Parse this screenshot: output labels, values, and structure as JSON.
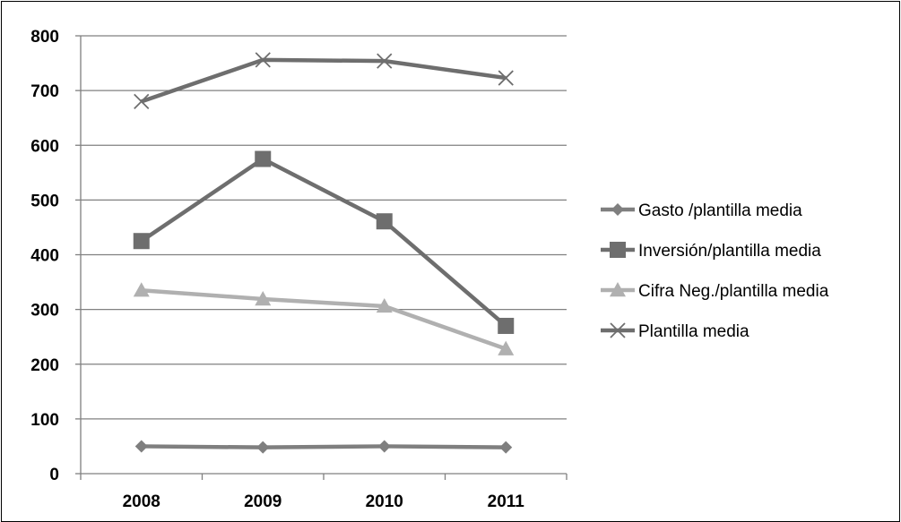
{
  "chart_data": {
    "type": "line",
    "categories": [
      "2008",
      "2009",
      "2010",
      "2011"
    ],
    "ylim": [
      0,
      800
    ],
    "yticks": [
      0,
      100,
      200,
      300,
      400,
      500,
      600,
      700,
      800
    ],
    "grid": true,
    "legend_position": "right",
    "series": [
      {
        "name": "Gasto /plantilla media",
        "values": [
          50,
          48,
          50,
          48
        ],
        "color": "#7f7f7f",
        "marker": "diamond"
      },
      {
        "name": "Inversión/plantilla media",
        "values": [
          425,
          575,
          461,
          270
        ],
        "color": "#6e6e6e",
        "marker": "square"
      },
      {
        "name": "Cifra Neg./plantilla media",
        "values": [
          335,
          319,
          306,
          228
        ],
        "color": "#b0b0b0",
        "marker": "triangle"
      },
      {
        "name": "Plantilla media",
        "values": [
          680,
          756,
          754,
          723
        ],
        "color": "#6e6e6e",
        "marker": "x"
      }
    ]
  }
}
